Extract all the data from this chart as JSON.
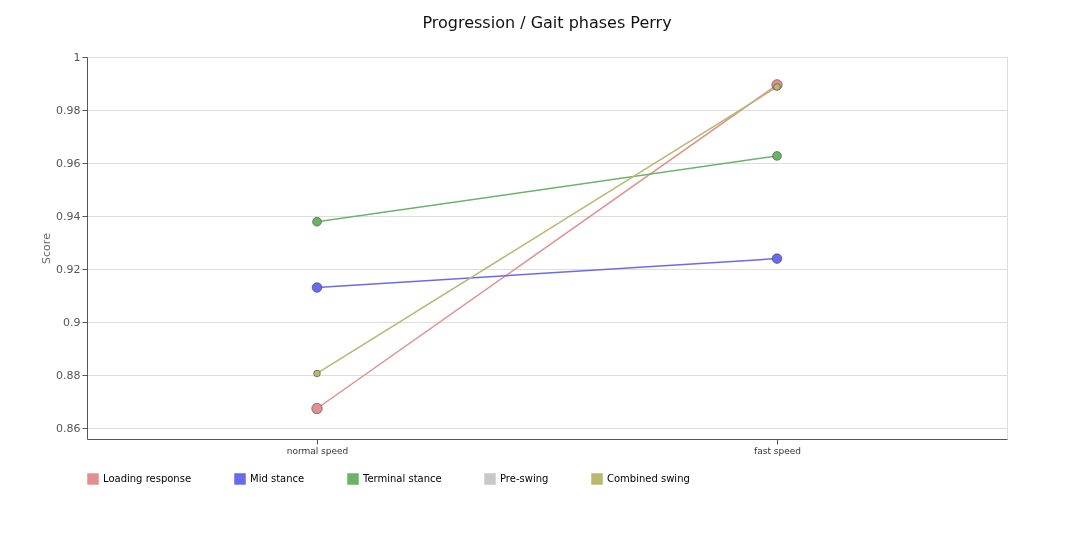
{
  "chart_data": {
    "type": "line",
    "title": "Progression / Gait phases Perry",
    "ylabel": "Score",
    "categories": [
      "normal speed",
      "fast speed"
    ],
    "series": [
      {
        "name": "Loading response",
        "color": "#e09090",
        "values": [
          0.8675,
          0.9895
        ]
      },
      {
        "name": "Mid stance",
        "color": "#6a6af0",
        "values": [
          0.9131,
          0.924
        ]
      },
      {
        "name": "Terminal stance",
        "color": "#6ab46a",
        "values": [
          0.9379,
          0.9627
        ]
      },
      {
        "name": "Pre-swing",
        "color": "#c8c8c8",
        "values": [
          null,
          null
        ]
      },
      {
        "name": "Combined swing",
        "color": "#b8b870",
        "values": [
          0.8807,
          0.9887
        ]
      }
    ],
    "ylim": [
      0.856,
      1
    ],
    "yticks": [
      0.86,
      0.88,
      0.9,
      0.92,
      0.94,
      0.96,
      0.98,
      {
        "value": 1,
        "label": "1"
      }
    ],
    "grid": "y",
    "legend": "bottom",
    "marker": "circle",
    "line_style": "solid"
  }
}
